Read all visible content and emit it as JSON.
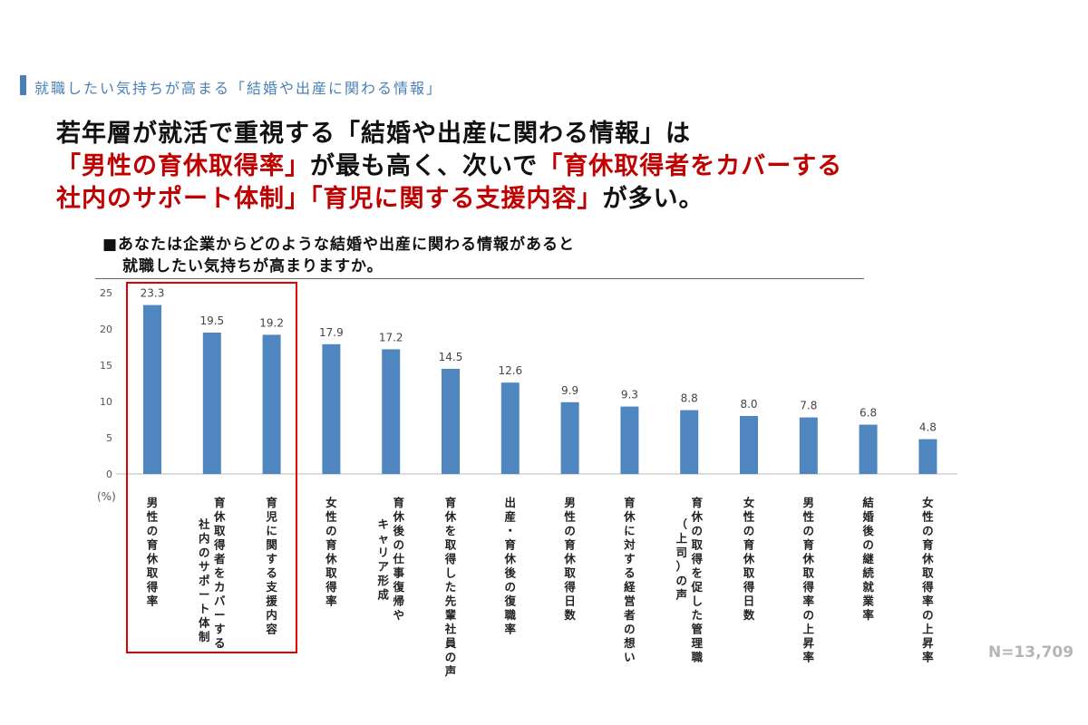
{
  "section": {
    "label": "就職したい気持ちが高まる「結婚や出産に関わる情報」"
  },
  "headline": {
    "line1": "若年層が就活で重視する「結婚や出産に関わる情報」は",
    "line2_red1": "「男性の育休取得率」",
    "line2_black": "が最も高く、次いで",
    "line2_red2": "「育休取得者をカバーする",
    "line3_red": "社内のサポート体制」「育児に関する支援内容」",
    "line3_black": "が多い。"
  },
  "question": {
    "line1": "■あなたは企業からどのような結婚や出産に関わる情報があると",
    "line2": "就職したい気持ちが高まりますか。"
  },
  "unit_label": "(%)",
  "sample_size": "N=13,709",
  "colors": {
    "bar": "#4f86c0",
    "accent_red": "#c00000",
    "highlight_box": "#e00000",
    "section": "#4a7fb8"
  },
  "chart_data": {
    "type": "bar",
    "ylim": [
      0,
      25
    ],
    "yticks": [
      0,
      5,
      10,
      15,
      20,
      25
    ],
    "grid": false,
    "categories": [
      [
        "男性の育休取得率"
      ],
      [
        "育休取得者をカバーする",
        "社内のサポート体制"
      ],
      [
        "育児に関する支援内容"
      ],
      [
        "女性の育休取得率"
      ],
      [
        "育休後の仕事復帰や",
        "キャリア形成"
      ],
      [
        "育休を取得した先輩社員の声"
      ],
      [
        "出産・育休後の復職率"
      ],
      [
        "男性の育休取得日数"
      ],
      [
        "育休に対する経営者の想い"
      ],
      [
        "育休の取得を促した管理職",
        "（上司）の声"
      ],
      [
        "女性の育休取得日数"
      ],
      [
        "男性の育休取得率の上昇率"
      ],
      [
        "結婚後の継続就業率"
      ],
      [
        "女性の育休取得率の上昇率"
      ]
    ],
    "values": [
      23.3,
      19.5,
      19.2,
      17.9,
      17.2,
      14.5,
      12.6,
      9.9,
      9.3,
      8.8,
      8.0,
      7.8,
      6.8,
      4.8
    ],
    "value_labels": [
      "23.3",
      "19.5",
      "19.2",
      "17.9",
      "17.2",
      "14.5",
      "12.6",
      "9.9",
      "9.3",
      "8.8",
      "8.0",
      "7.8",
      "6.8",
      "4.8"
    ]
  }
}
